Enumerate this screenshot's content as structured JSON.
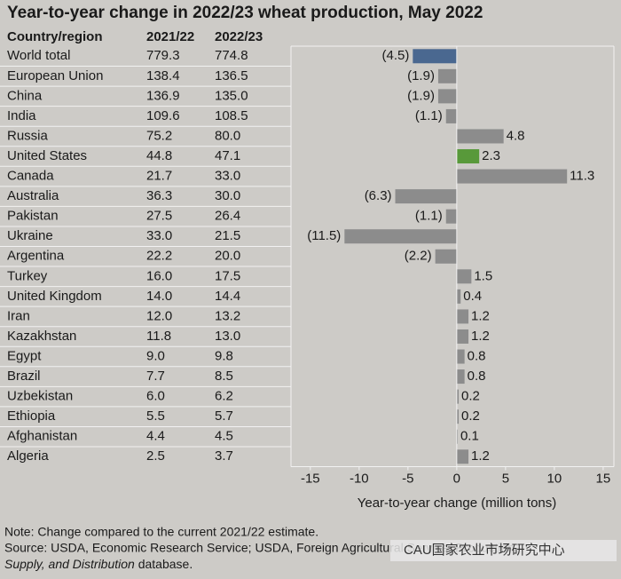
{
  "chart_data": {
    "type": "bar",
    "orientation": "horizontal",
    "title": "Year-to-year change in 2022/23 wheat production, May 2022",
    "columns": [
      "Country/region",
      "2021/22",
      "2022/23"
    ],
    "categories": [
      "World total",
      "European Union",
      "China",
      "India",
      "Russia",
      "United States",
      "Canada",
      "Australia",
      "Pakistan",
      "Ukraine",
      "Argentina",
      "Turkey",
      "United Kingdom",
      "Iran",
      "Kazakhstan",
      "Egypt",
      "Brazil",
      "Uzbekistan",
      "Ethiopia",
      "Afghanistan",
      "Algeria"
    ],
    "col_2021_22": [
      "779.3",
      "138.4",
      "136.9",
      "109.6",
      "75.2",
      "44.8",
      "21.7",
      "36.3",
      "27.5",
      "33.0",
      "22.2",
      "16.0",
      "14.0",
      "12.0",
      "11.8",
      "9.0",
      "7.7",
      "6.0",
      "5.5",
      "4.4",
      "2.5"
    ],
    "col_2022_23": [
      "774.8",
      "136.5",
      "135.0",
      "108.5",
      "80.0",
      "47.1",
      "33.0",
      "30.0",
      "26.4",
      "21.5",
      "20.0",
      "17.5",
      "14.4",
      "13.2",
      "13.0",
      "9.8",
      "8.5",
      "6.2",
      "5.7",
      "4.5",
      "3.7"
    ],
    "values": [
      -4.5,
      -1.9,
      -1.9,
      -1.1,
      4.8,
      2.3,
      11.3,
      -6.3,
      -1.1,
      -11.5,
      -2.2,
      1.5,
      0.4,
      1.2,
      1.2,
      0.8,
      0.8,
      0.2,
      0.2,
      0.1,
      1.2
    ],
    "value_labels": [
      "(4.5)",
      "(1.9)",
      "(1.9)",
      "(1.1)",
      "4.8",
      "2.3",
      "11.3",
      "(6.3)",
      "(1.1)",
      "(11.5)",
      "(2.2)",
      "1.5",
      "0.4",
      "1.2",
      "1.2",
      "0.8",
      "0.8",
      "0.2",
      "0.2",
      "0.1",
      "1.2"
    ],
    "colors": [
      "#4a6890",
      "#8c8c8c",
      "#8c8c8c",
      "#8c8c8c",
      "#8c8c8c",
      "#58993a",
      "#8c8c8c",
      "#8c8c8c",
      "#8c8c8c",
      "#8c8c8c",
      "#8c8c8c",
      "#8c8c8c",
      "#8c8c8c",
      "#8c8c8c",
      "#8c8c8c",
      "#8c8c8c",
      "#8c8c8c",
      "#8c8c8c",
      "#8c8c8c",
      "#8c8c8c",
      "#8c8c8c"
    ],
    "xlim": [
      -16.8,
      16.1
    ],
    "xticks": [
      -15,
      -10,
      -5,
      0,
      5,
      10,
      15
    ],
    "x_label": "Year-to-year change (million tons)",
    "note": "Note: Change compared to the current 2021/22 estimate.",
    "source": "Source: USDA, Economic Research Service; USDA, Foreign Agricultural Service, Production,",
    "source_database": "Supply, and Distribution",
    "source_end": " database.",
    "watermark": "CAU国家农业市场研究中心"
  }
}
